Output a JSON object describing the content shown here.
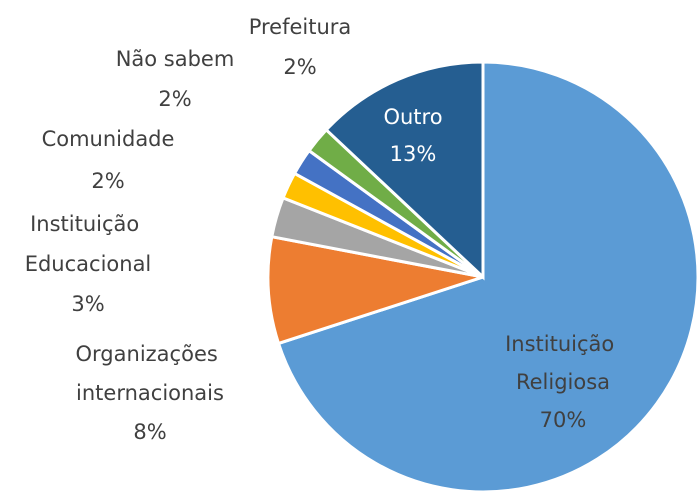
{
  "chart_data": {
    "type": "pie",
    "categories": [
      "Instituição Religiosa",
      "Organizações internacionais",
      "Instituição Educacional",
      "Comunidade",
      "Não sabem",
      "Prefeitura",
      "Outro"
    ],
    "values": [
      70,
      8,
      3,
      2,
      2,
      2,
      13
    ],
    "value_labels": [
      "70%",
      "8%",
      "3%",
      "2%",
      "2%",
      "2%",
      "13%"
    ],
    "colors": [
      "#5b9bd5",
      "#ed7d31",
      "#a5a5a5",
      "#ffc000",
      "#4472c4",
      "#70ad47",
      "#255e91"
    ]
  }
}
